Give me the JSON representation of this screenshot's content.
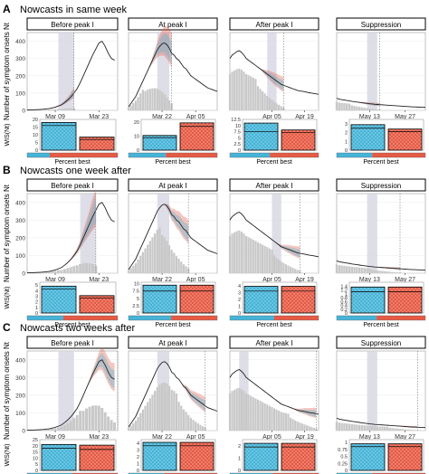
{
  "colors": {
    "blue": "#45b4d8",
    "red": "#e65a44",
    "gray": "#c8c8c8",
    "band": "#d6d6e2",
    "line": "#222222"
  },
  "figure": {
    "ylabel": "Number of symptom onsets",
    "ylabel_sub": "N",
    "ylabel_sub_small": "t",
    "wis_label": "WIS(N",
    "wis_label_sub": "t",
    "wis_label_close": ")",
    "percent_label": "Percent best",
    "panels": [
      {
        "letter": "A",
        "title": "Nowcasts in same week"
      },
      {
        "letter": "B",
        "title": "Nowcasts one week after"
      },
      {
        "letter": "C",
        "title": "Nowcasts two weeks after"
      }
    ],
    "column_titles": [
      "Before peak I",
      "At peak I",
      "After peak I",
      "Suppression"
    ]
  },
  "chart_data": {
    "type": "line",
    "main_yticks": [
      0,
      100,
      200,
      300,
      400
    ],
    "main_ylim": [
      0,
      450
    ],
    "columns": [
      {
        "title": "Before peak I",
        "xticks": [
          "Mar 09",
          "Mar 23"
        ],
        "xtick_days": [
          9,
          23
        ],
        "xlim": [
          0,
          29
        ],
        "cases": [
          2,
          3,
          3,
          4,
          5,
          6,
          8,
          10,
          14,
          18,
          25,
          32,
          45,
          60,
          78,
          100,
          125,
          160,
          200,
          240,
          280,
          320,
          355,
          390,
          400,
          370,
          330,
          300,
          290
        ],
        "rows": [
          {
            "nowcast_day": 15,
            "band": [
              10,
              15
            ],
            "bars_up_to": 15,
            "wis_ylim": [
              0,
              20
            ],
            "wis_ticks": [
              0,
              5,
              10,
              15,
              20
            ],
            "wis": [
              18,
              8.5
            ],
            "wis_dash": [
              16,
              7
            ],
            "percent_best": 0.25
          },
          {
            "nowcast_day": 22,
            "band": [
              17,
              22
            ],
            "bars_up_to": 22,
            "wis_ylim": [
              0,
              5.5
            ],
            "wis_ticks": [
              0,
              1,
              2,
              3,
              4,
              5
            ],
            "wis": [
              4.8,
              3.1
            ],
            "wis_dash": [
              4.3,
              2.7
            ],
            "percent_best": 0.4
          },
          {
            "nowcast_day": 29,
            "band": [
              10,
              15
            ],
            "bars_up_to": 29,
            "wis_ylim": [
              0,
              25
            ],
            "wis_ticks": [
              0,
              5,
              10,
              15,
              20,
              25
            ],
            "wis": [
              21,
              20.5
            ],
            "wis_dash": [
              18,
              17
            ],
            "percent_best": 0.5
          }
        ]
      },
      {
        "title": "At peak I",
        "xticks": [
          "Mar 22",
          "Apr 05"
        ],
        "xtick_days": [
          22,
          36
        ],
        "xlim": [
          8,
          45
        ],
        "cases": [
          20,
          40,
          60,
          80,
          110,
          140,
          170,
          200,
          230,
          260,
          290,
          320,
          350,
          370,
          385,
          390,
          380,
          360,
          330,
          320,
          300,
          290,
          270,
          250,
          240,
          220,
          200,
          190,
          180,
          170,
          160,
          150,
          140,
          130,
          125,
          120,
          115,
          110
        ],
        "rows": [
          {
            "nowcast_day": 26,
            "band": [
              20,
              25
            ],
            "bars_up_to": 26,
            "wis_ylim": [
              0,
              22
            ],
            "wis_ticks": [
              0,
              10,
              20
            ],
            "wis": [
              10.5,
              19.5
            ],
            "wis_dash": [
              9,
              17
            ],
            "percent_best": 0.42
          },
          {
            "nowcast_day": 33,
            "band": [
              20,
              25
            ],
            "bars_up_to": 33,
            "wis_ylim": [
              0,
              10.5
            ],
            "wis_ticks": [
              0,
              2.5,
              5.0,
              7.5,
              10.0
            ],
            "wis": [
              9.5,
              9.5
            ],
            "wis_dash": [
              7.5,
              7.5
            ],
            "percent_best": 0.48
          },
          {
            "nowcast_day": 40,
            "band": [
              20,
              25
            ],
            "bars_up_to": 40,
            "wis_ylim": [
              0,
              4.5
            ],
            "wis_ticks": [
              0,
              1,
              2,
              3,
              4
            ],
            "wis": [
              4.1,
              4.1
            ],
            "wis_dash": [
              3.6,
              3.6
            ],
            "percent_best": 0.4
          }
        ]
      },
      {
        "title": "After peak I",
        "xticks": [
          "Apr 05",
          "Apr 19"
        ],
        "xtick_days": [
          36,
          50
        ],
        "xlim": [
          18,
          56
        ],
        "cases": [
          300,
          320,
          330,
          340,
          345,
          335,
          320,
          300,
          290,
          280,
          270,
          260,
          250,
          240,
          230,
          220,
          210,
          200,
          190,
          180,
          170,
          160,
          150,
          145,
          140,
          135,
          130,
          125,
          120,
          115,
          112,
          110,
          108,
          105,
          102,
          100,
          98,
          95,
          93
        ],
        "rows": [
          {
            "nowcast_day": 41,
            "band": [
              34,
              38
            ],
            "bars_up_to": 41,
            "wis_ylim": [
              0,
              12.5
            ],
            "wis_ticks": [
              0,
              2.5,
              5.0,
              7.5,
              10.0,
              12.5
            ],
            "wis": [
              11,
              8.2
            ],
            "wis_dash": [
              7.6,
              7.2
            ],
            "percent_best": 0.45
          },
          {
            "nowcast_day": 48,
            "band": [
              36,
              40
            ],
            "bars_up_to": 48,
            "wis_ylim": [
              0,
              4.5
            ],
            "wis_ticks": [
              0,
              1,
              2,
              3,
              4
            ],
            "wis": [
              3.9,
              3.9
            ],
            "wis_dash": [
              3.2,
              3.2
            ],
            "percent_best": 0.5
          },
          {
            "nowcast_day": 55,
            "band": [
              22,
              26
            ],
            "bars_up_to": 55,
            "wis_ylim": [
              0,
              2.5
            ],
            "wis_ticks": [
              0,
              1,
              2
            ],
            "wis": [
              2.2,
              2.2
            ],
            "wis_dash": [
              1.9,
              1.9
            ],
            "percent_best": 0.48
          }
        ]
      },
      {
        "title": "Suppression",
        "xticks": [
          "May 13",
          "May 27"
        ],
        "xtick_days": [
          13,
          27
        ],
        "xlim": [
          0,
          35
        ],
        "cases": [
          70,
          65,
          62,
          60,
          57,
          55,
          52,
          50,
          48,
          46,
          44,
          42,
          40,
          38,
          37,
          35,
          34,
          33,
          32,
          31,
          30,
          29,
          28,
          27,
          26,
          25,
          24,
          23,
          22,
          21,
          20,
          20,
          19,
          18,
          18,
          17
        ],
        "rows": [
          {
            "nowcast_day": 17,
            "band": [
              12,
              16
            ],
            "bars_up_to": 17,
            "wis_ylim": [
              0,
              3.5
            ],
            "wis_ticks": [
              0,
              1,
              2,
              3
            ],
            "wis": [
              2.9,
              2.4
            ],
            "wis_dash": [
              2.5,
              2.1
            ],
            "percent_best": 0.4
          },
          {
            "nowcast_day": 25,
            "band": [
              12,
              16
            ],
            "bars_up_to": 25,
            "wis_ylim": [
              0,
              1.6
            ],
            "wis_ticks": [
              0,
              0.2,
              0.4,
              0.6,
              0.8,
              1.0,
              1.2,
              1.4
            ],
            "wis": [
              1.35,
              1.35
            ],
            "wis_dash": [
              1.1,
              1.1
            ],
            "percent_best": 0.45
          },
          {
            "nowcast_day": 32,
            "band": [
              12,
              16
            ],
            "bars_up_to": 32,
            "wis_ylim": [
              0,
              1.1
            ],
            "wis_ticks": [
              0,
              0.25,
              0.5,
              0.75,
              1.0
            ],
            "wis": [
              0.95,
              0.95
            ],
            "wis_dash": [
              0.85,
              0.85
            ],
            "percent_best": 0.4
          }
        ]
      }
    ]
  }
}
